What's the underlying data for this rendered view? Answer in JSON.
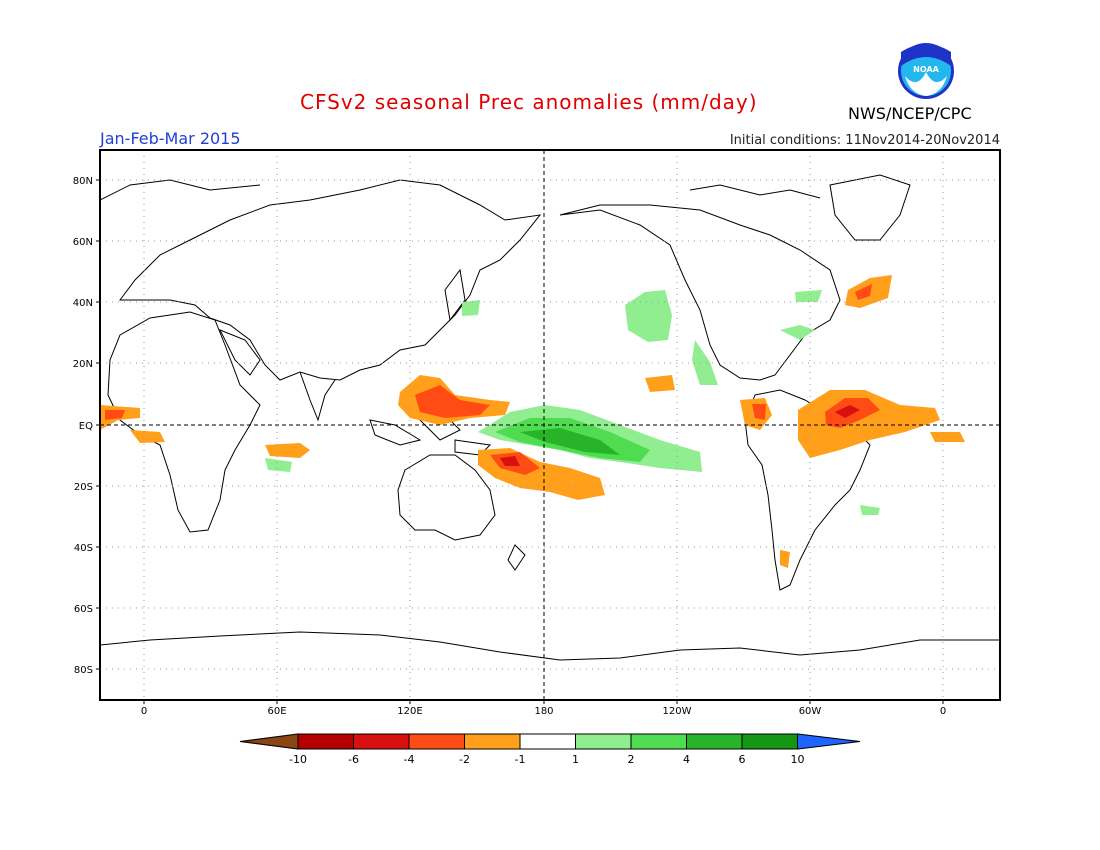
{
  "header": {
    "title": "CFSv2 seasonal Prec anomalies (mm/day)",
    "season": "Jan-Feb-Mar 2015",
    "initial_conditions": "Initial conditions: 11Nov2014-20Nov2014",
    "agency": "NWS/NCEP/CPC",
    "logo_text": "NOAA"
  },
  "map": {
    "lat_labels": [
      "80N",
      "60N",
      "40N",
      "20N",
      "EQ",
      "20S",
      "40S",
      "60S",
      "80S"
    ],
    "lon_labels": [
      "0",
      "60E",
      "120E",
      "180",
      "120W",
      "60W",
      "0"
    ]
  },
  "legend": {
    "labels": [
      "-10",
      "-6",
      "-4",
      "-2",
      "-1",
      "1",
      "2",
      "4",
      "6",
      "10"
    ],
    "colors": [
      "#8b4513",
      "#b40000",
      "#d81010",
      "#ff4c14",
      "#ff9f1a",
      "#ffffff",
      "#90ee90",
      "#50dc50",
      "#28b428",
      "#159615",
      "#1e64ff"
    ]
  }
}
